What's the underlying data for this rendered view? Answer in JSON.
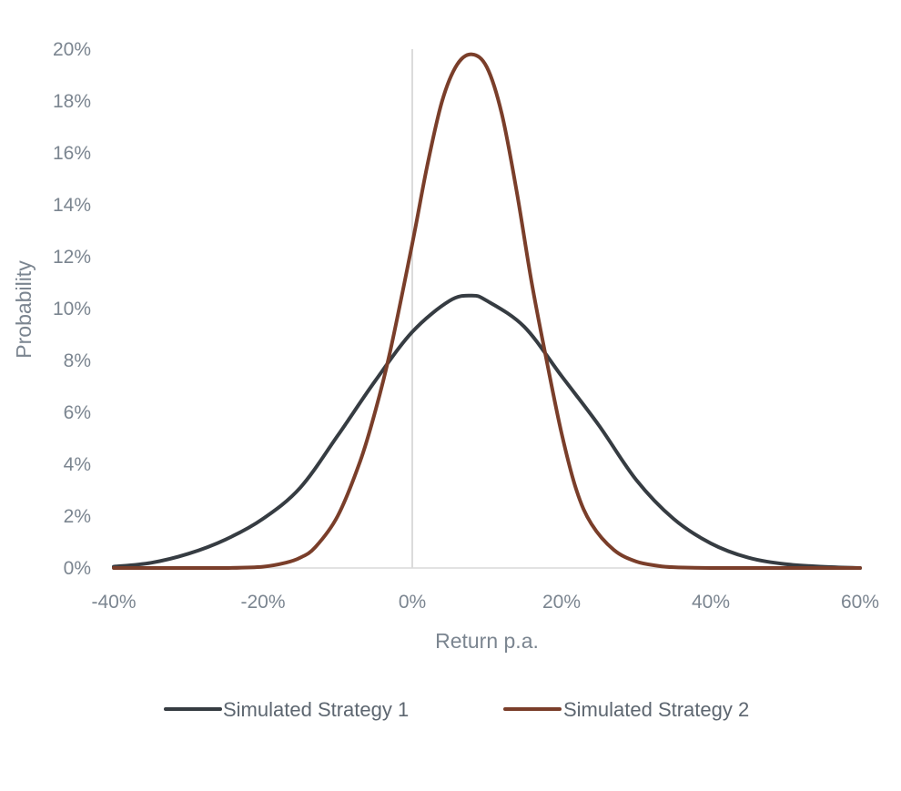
{
  "chart_data": {
    "type": "line",
    "title": "",
    "xlabel": "Return p.a.",
    "ylabel": "Probability",
    "xlim": [
      -40,
      60
    ],
    "ylim": [
      0,
      20
    ],
    "x_ticks": [
      -40,
      -20,
      0,
      20,
      40,
      60
    ],
    "x_tick_labels": [
      "-40%",
      "-20%",
      "0%",
      "20%",
      "40%",
      "60%"
    ],
    "y_ticks": [
      0,
      2,
      4,
      6,
      8,
      10,
      12,
      14,
      16,
      18,
      20
    ],
    "y_tick_labels": [
      "0%",
      "2%",
      "4%",
      "6%",
      "8%",
      "10%",
      "12%",
      "14%",
      "16%",
      "18%",
      "20%"
    ],
    "grid": false,
    "zero_line": true,
    "legend_position": "bottom",
    "series": [
      {
        "name": "Simulated Strategy 1",
        "color": "#363c42",
        "x": [
          -40,
          -35,
          -30,
          -25,
          -20,
          -15,
          -10,
          -5,
          0,
          5,
          8,
          10,
          15,
          20,
          25,
          30,
          35,
          40,
          45,
          50,
          55,
          60
        ],
        "y": [
          0.05,
          0.2,
          0.55,
          1.1,
          1.9,
          3.1,
          5.1,
          7.2,
          9.1,
          10.3,
          10.5,
          10.3,
          9.3,
          7.4,
          5.5,
          3.4,
          1.9,
          0.95,
          0.4,
          0.15,
          0.05,
          0.0
        ]
      },
      {
        "name": "Simulated Strategy 2",
        "color": "#7a3e2a",
        "x": [
          -40,
          -30,
          -25,
          -20,
          -17,
          -15,
          -13,
          -10,
          -7,
          -5,
          -3,
          0,
          2,
          4,
          6,
          8,
          10,
          12,
          14,
          16,
          18,
          20,
          22,
          24,
          27,
          30,
          33,
          35,
          40,
          50,
          60
        ],
        "y": [
          0.0,
          0.0,
          0.0,
          0.05,
          0.2,
          0.4,
          0.8,
          2.0,
          4.1,
          6.0,
          8.3,
          12.5,
          15.5,
          18.0,
          19.4,
          19.8,
          19.3,
          17.5,
          14.5,
          11.0,
          8.0,
          5.2,
          3.0,
          1.7,
          0.7,
          0.25,
          0.08,
          0.03,
          0.0,
          0.0,
          0.0
        ]
      }
    ]
  }
}
